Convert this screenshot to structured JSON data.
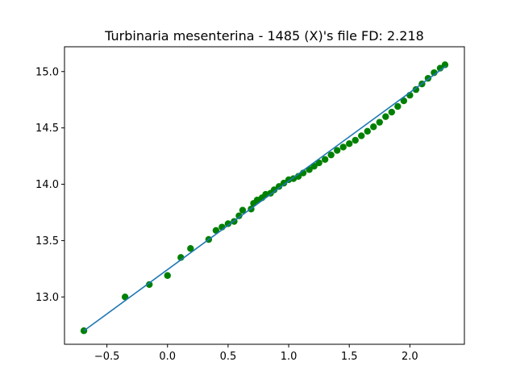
{
  "chart_data": {
    "type": "scatter",
    "title": "Turbinaria mesenterina - 1485 (X)'s file FD: 2.218",
    "xlabel": "",
    "ylabel": "",
    "xlim": [
      -0.85,
      2.45
    ],
    "ylim": [
      12.58,
      15.22
    ],
    "grid": false,
    "x_ticks": [
      -0.5,
      0.0,
      0.5,
      1.0,
      1.5,
      2.0
    ],
    "x_tick_labels": [
      "−0.5",
      "0.0",
      "0.5",
      "1.0",
      "1.5",
      "2.0"
    ],
    "y_ticks": [
      13.0,
      13.5,
      14.0,
      14.5,
      15.0
    ],
    "y_tick_labels": [
      "13.0",
      "13.5",
      "14.0",
      "14.5",
      "15.0"
    ],
    "series": [
      {
        "kind": "scatter",
        "color": "#008000",
        "points": [
          [
            -0.69,
            12.7
          ],
          [
            -0.35,
            13.0
          ],
          [
            -0.15,
            13.11
          ],
          [
            0.0,
            13.19
          ],
          [
            0.11,
            13.35
          ],
          [
            0.19,
            13.43
          ],
          [
            0.34,
            13.51
          ],
          [
            0.4,
            13.59
          ],
          [
            0.45,
            13.62
          ],
          [
            0.5,
            13.65
          ],
          [
            0.55,
            13.67
          ],
          [
            0.59,
            13.72
          ],
          [
            0.62,
            13.77
          ],
          [
            0.69,
            13.78
          ],
          [
            0.71,
            13.83
          ],
          [
            0.74,
            13.86
          ],
          [
            0.78,
            13.88
          ],
          [
            0.81,
            13.91
          ],
          [
            0.85,
            13.92
          ],
          [
            0.88,
            13.95
          ],
          [
            0.92,
            13.98
          ],
          [
            0.96,
            14.01
          ],
          [
            1.0,
            14.04
          ],
          [
            1.04,
            14.05
          ],
          [
            1.08,
            14.07
          ],
          [
            1.12,
            14.1
          ],
          [
            1.17,
            14.13
          ],
          [
            1.21,
            14.16
          ],
          [
            1.25,
            14.19
          ],
          [
            1.3,
            14.22
          ],
          [
            1.35,
            14.26
          ],
          [
            1.4,
            14.3
          ],
          [
            1.45,
            14.33
          ],
          [
            1.5,
            14.36
          ],
          [
            1.55,
            14.39
          ],
          [
            1.6,
            14.43
          ],
          [
            1.65,
            14.47
          ],
          [
            1.7,
            14.51
          ],
          [
            1.75,
            14.55
          ],
          [
            1.8,
            14.6
          ],
          [
            1.85,
            14.64
          ],
          [
            1.9,
            14.69
          ],
          [
            1.95,
            14.74
          ],
          [
            2.0,
            14.79
          ],
          [
            2.05,
            14.84
          ],
          [
            2.1,
            14.89
          ],
          [
            2.15,
            14.94
          ],
          [
            2.2,
            14.99
          ],
          [
            2.25,
            15.03
          ],
          [
            2.29,
            15.06
          ]
        ]
      },
      {
        "kind": "line",
        "color": "#1f77b4",
        "points": [
          [
            -0.69,
            12.7
          ],
          [
            2.3,
            15.05
          ]
        ]
      }
    ]
  }
}
